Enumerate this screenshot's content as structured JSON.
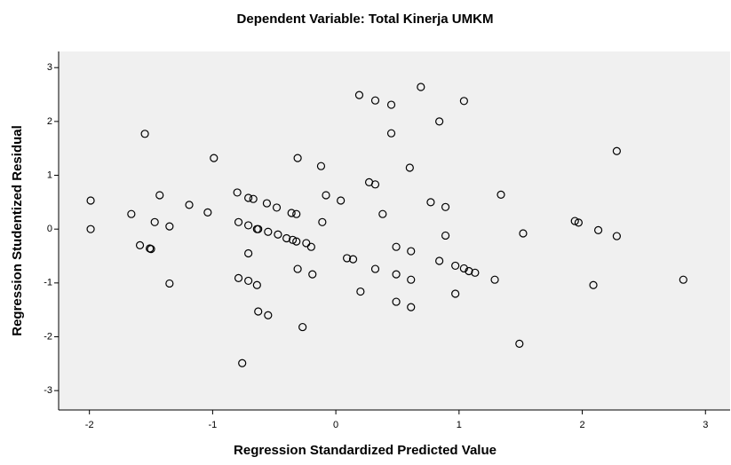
{
  "chart_data": {
    "type": "scatter",
    "title": "Dependent Variable: Total Kinerja UMKM",
    "x_label": "Regression Standardized Predicted Value",
    "y_label": "Regression Studentized Residual",
    "xlim": [
      -2.25,
      3.2
    ],
    "ylim": [
      -3.36,
      3.3
    ],
    "xticks": [
      -2,
      -1,
      0,
      1,
      2,
      3
    ],
    "yticks": [
      -3,
      -2,
      -1,
      0,
      1,
      2,
      3
    ],
    "color": "#000000",
    "x": [
      -1.99,
      -1.99,
      -1.55,
      -1.66,
      -1.59,
      -1.51,
      -1.5,
      -1.47,
      -1.43,
      -1.35,
      -1.35,
      -1.19,
      -1.04,
      -0.99,
      -0.8,
      -0.79,
      -0.79,
      -0.76,
      -0.71,
      -0.67,
      -0.71,
      -0.71,
      -0.71,
      -0.64,
      -0.63,
      -0.64,
      -0.63,
      -0.55,
      -0.56,
      -0.55,
      -0.48,
      -0.47,
      -0.4,
      -0.36,
      -0.35,
      -0.32,
      -0.32,
      -0.31,
      -0.31,
      -0.27,
      -0.24,
      -0.2,
      -0.19,
      -0.12,
      -0.11,
      -0.08,
      0.04,
      0.09,
      0.14,
      0.19,
      0.2,
      0.27,
      0.32,
      0.32,
      0.32,
      0.38,
      0.45,
      0.45,
      0.49,
      0.49,
      0.49,
      0.6,
      0.61,
      0.61,
      0.61,
      0.69,
      0.77,
      0.84,
      0.84,
      0.89,
      0.89,
      0.97,
      0.97,
      1.04,
      1.04,
      1.08,
      1.13,
      1.29,
      1.34,
      1.49,
      1.52,
      1.94,
      1.97,
      2.09,
      2.13,
      2.28,
      2.28,
      2.82
    ],
    "values": [
      0.53,
      0,
      1.77,
      0.28,
      -0.3,
      -0.36,
      -0.37,
      0.13,
      0.63,
      0.05,
      -1.01,
      0.45,
      0.31,
      1.32,
      0.68,
      0.13,
      -0.91,
      -2.49,
      0.58,
      0.56,
      0.07,
      -0.45,
      -0.96,
      0,
      0,
      -1.04,
      -1.53,
      -0.05,
      0.48,
      -1.6,
      0.4,
      -0.1,
      -0.17,
      0.3,
      -0.2,
      0.28,
      -0.23,
      1.32,
      -0.74,
      -1.82,
      -0.26,
      -0.33,
      -0.84,
      1.17,
      0.13,
      0.63,
      0.53,
      -0.54,
      -0.56,
      2.49,
      -1.16,
      0.87,
      2.39,
      0.83,
      -0.74,
      0.28,
      2.31,
      1.78,
      -0.33,
      -0.84,
      -1.35,
      1.14,
      -0.41,
      -0.94,
      -1.45,
      2.64,
      0.5,
      2,
      -0.59,
      0.41,
      -0.12,
      -0.68,
      -1.2,
      2.38,
      -0.73,
      -0.78,
      -0.81,
      -0.94,
      0.64,
      -2.13,
      -0.08,
      0.15,
      0.12,
      -1.04,
      -0.02,
      1.45,
      -0.13,
      -0.94
    ]
  }
}
